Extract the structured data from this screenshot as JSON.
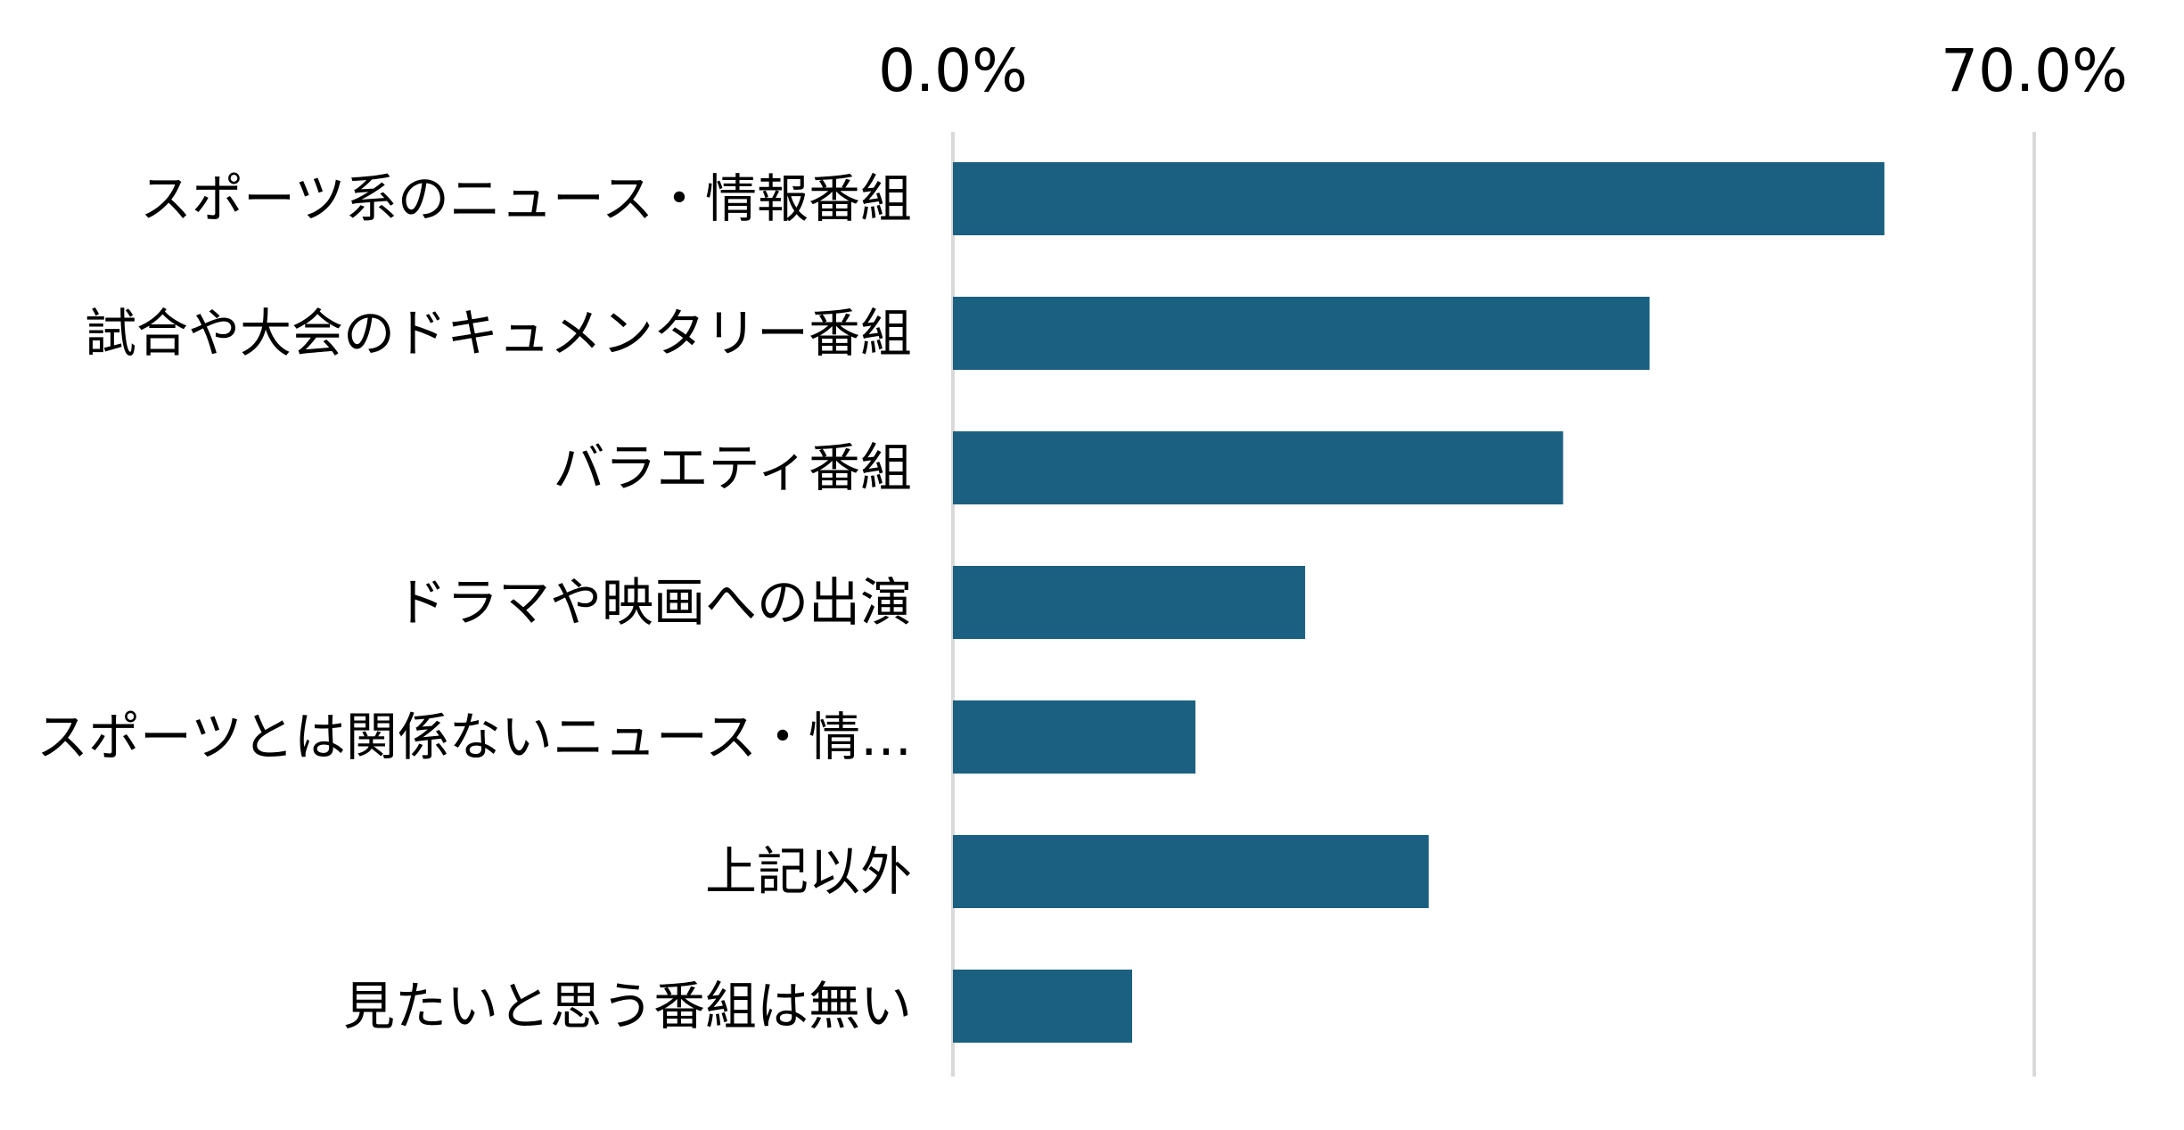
{
  "chart_data": {
    "type": "bar",
    "orientation": "horizontal",
    "x_axis_position": "top",
    "xlim": [
      0,
      70
    ],
    "x_tick_labels": [
      "0.0%",
      "70.0%"
    ],
    "grid": true,
    "legend": false,
    "bar_color": "#1B6080",
    "categories": [
      "スポーツ系のニュース・情報番組",
      "試合や大会のドキュメンタリー番組",
      "バラエティ番組",
      "ドラマや映画への出演",
      "スポーツとは関係ないニュース・情…",
      "上記以外",
      "見たいと思う番組は無い"
    ],
    "values": [
      60.3,
      45.1,
      39.5,
      22.8,
      15.7,
      30.8,
      11.6
    ]
  }
}
